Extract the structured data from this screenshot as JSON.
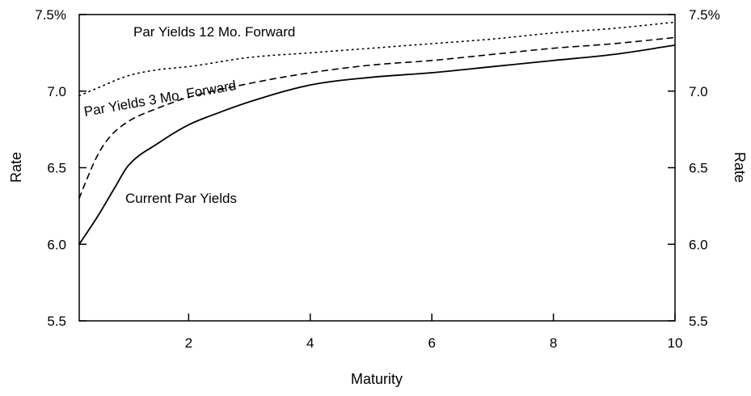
{
  "chart_data": {
    "type": "line",
    "title": "",
    "xlabel": "Maturity",
    "ylabel_left": "Rate",
    "ylabel_right": "Rate",
    "xlim": [
      0.2,
      10
    ],
    "ylim": [
      5.5,
      7.5
    ],
    "x_ticks": [
      2,
      4,
      6,
      8,
      10
    ],
    "x_tick_labels": [
      "2",
      "4",
      "6",
      "8",
      "10"
    ],
    "y_ticks": [
      5.5,
      6.0,
      6.5,
      7.0,
      7.5
    ],
    "y_tick_labels_left": [
      "5.5",
      "6.0",
      "6.5",
      "7.0",
      "7.5%"
    ],
    "y_tick_labels_right": [
      "5.5",
      "6.0",
      "6.5",
      "7.0",
      "7.5%"
    ],
    "grid": false,
    "legend": "inline labels",
    "series": [
      {
        "name": "Par Yields 12 Mo. Forward",
        "line_style": "dotted",
        "x": [
          0.2,
          0.5,
          1.0,
          1.5,
          2.0,
          3.0,
          4.0,
          5.0,
          6.0,
          7.0,
          8.0,
          9.0,
          10.0
        ],
        "y": [
          6.97,
          7.02,
          7.1,
          7.14,
          7.16,
          7.22,
          7.25,
          7.28,
          7.31,
          7.34,
          7.38,
          7.41,
          7.45
        ]
      },
      {
        "name": "Par Yields 3 Mo. Forward",
        "line_style": "dashed",
        "x": [
          0.2,
          0.3,
          0.5,
          0.7,
          1.0,
          1.5,
          2.0,
          3.0,
          4.0,
          5.0,
          6.0,
          7.0,
          8.0,
          9.0,
          10.0
        ],
        "y": [
          6.3,
          6.4,
          6.58,
          6.7,
          6.8,
          6.89,
          6.96,
          7.05,
          7.12,
          7.17,
          7.2,
          7.24,
          7.28,
          7.31,
          7.35
        ]
      },
      {
        "name": "Current Par Yields",
        "line_style": "solid",
        "x": [
          0.2,
          0.5,
          0.8,
          1.0,
          1.5,
          2.0,
          2.5,
          3.0,
          4.0,
          5.0,
          6.0,
          7.0,
          8.0,
          9.0,
          10.0
        ],
        "y": [
          6.0,
          6.18,
          6.38,
          6.51,
          6.66,
          6.78,
          6.86,
          6.93,
          7.04,
          7.09,
          7.12,
          7.16,
          7.2,
          7.24,
          7.3
        ]
      }
    ]
  }
}
